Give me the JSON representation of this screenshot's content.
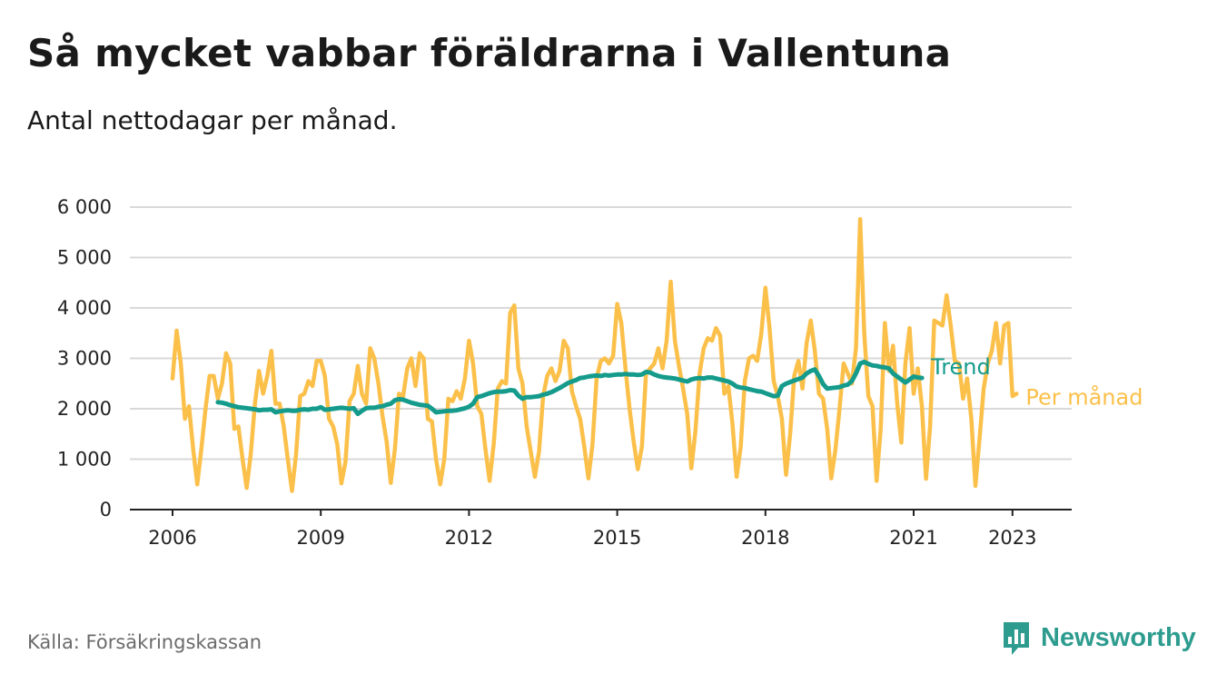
{
  "title": "Så mycket vabbar föräldrarna i Vallentuna",
  "subtitle": "Antal nettodagar per månad.",
  "source": "Källa: Försäkringskassan",
  "brand": {
    "name": "Newsworthy",
    "icon": "newsworthy-logo-icon",
    "color": "#2d9c8f"
  },
  "chart_data": {
    "type": "line",
    "x_start": "2006-01",
    "x_ticks": [
      "2006",
      "2009",
      "2012",
      "2015",
      "2018",
      "2021",
      "2023"
    ],
    "y_ticks": [
      "0",
      "1 000",
      "2 000",
      "3 000",
      "4 000",
      "5 000",
      "6 000"
    ],
    "ylim": [
      0,
      6000
    ],
    "grid": true,
    "legend_position": "right-end",
    "series": [
      {
        "name": "Per månad",
        "color": "#fbc04a",
        "start": "2006-01",
        "values": [
          2600,
          3550,
          2900,
          1800,
          2050,
          1200,
          500,
          1200,
          2000,
          2650,
          2650,
          2200,
          2500,
          3100,
          2900,
          1600,
          1650,
          1000,
          430,
          1100,
          2100,
          2750,
          2300,
          2650,
          3150,
          2100,
          2100,
          1650,
          1000,
          370,
          1100,
          2250,
          2300,
          2550,
          2450,
          2950,
          2950,
          2650,
          1800,
          1650,
          1300,
          520,
          950,
          2150,
          2300,
          2850,
          2300,
          2100,
          3200,
          3000,
          2500,
          1850,
          1350,
          530,
          1200,
          2300,
          2250,
          2800,
          3000,
          2450,
          3100,
          3000,
          1800,
          1750,
          1000,
          500,
          1000,
          2200,
          2150,
          2350,
          2200,
          2600,
          3350,
          2900,
          2050,
          1900,
          1200,
          570,
          1300,
          2400,
          2550,
          2500,
          3900,
          4050,
          2800,
          2500,
          1650,
          1150,
          650,
          1150,
          2250,
          2650,
          2800,
          2550,
          2750,
          3350,
          3200,
          2350,
          2050,
          1800,
          1250,
          620,
          1300,
          2600,
          2950,
          3000,
          2900,
          3050,
          4080,
          3700,
          2800,
          2000,
          1350,
          800,
          1250,
          2700,
          2800,
          2900,
          3200,
          2800,
          3350,
          4520,
          3350,
          2850,
          2400,
          1900,
          820,
          1550,
          2700,
          3200,
          3400,
          3350,
          3600,
          3450,
          2300,
          2450,
          1700,
          650,
          1250,
          2550,
          3000,
          3050,
          2950,
          3500,
          4400,
          3600,
          2550,
          2250,
          1800,
          690,
          1500,
          2650,
          2950,
          2400,
          3300,
          3750,
          3150,
          2300,
          2200,
          1600,
          620,
          1200,
          2000,
          2900,
          2700,
          2500,
          3200,
          5760,
          3500,
          2250,
          2050,
          570,
          1600,
          3700,
          2750,
          3250,
          2100,
          1330,
          2900,
          3600,
          2300,
          2800,
          2050,
          610,
          1650,
          3750,
          3700,
          3650,
          4250,
          3650,
          2950,
          2900,
          2200,
          2600,
          1800,
          470,
          1400,
          2400,
          2900,
          3150,
          3700,
          2900,
          3650,
          3700,
          2250,
          2300
        ]
      },
      {
        "name": "Trend",
        "color": "#159b8c",
        "start": "2006-12",
        "values": [
          2130,
          2120,
          2100,
          2070,
          2050,
          2030,
          2020,
          2010,
          2000,
          1990,
          1970,
          1980,
          1980,
          1990,
          1930,
          1950,
          1960,
          1970,
          1960,
          1960,
          1980,
          1990,
          1980,
          2000,
          2000,
          2030,
          1980,
          1990,
          2000,
          2010,
          2020,
          2010,
          2000,
          2010,
          1900,
          1960,
          2010,
          2020,
          2020,
          2040,
          2050,
          2080,
          2100,
          2170,
          2190,
          2180,
          2150,
          2120,
          2100,
          2080,
          2070,
          2060,
          2000,
          1930,
          1940,
          1950,
          1960,
          1960,
          1970,
          1990,
          2010,
          2040,
          2100,
          2230,
          2250,
          2280,
          2310,
          2330,
          2340,
          2340,
          2350,
          2370,
          2360,
          2260,
          2200,
          2230,
          2230,
          2240,
          2250,
          2280,
          2300,
          2330,
          2370,
          2410,
          2460,
          2510,
          2540,
          2570,
          2610,
          2620,
          2640,
          2650,
          2660,
          2650,
          2670,
          2660,
          2670,
          2680,
          2680,
          2690,
          2680,
          2680,
          2670,
          2680,
          2730,
          2720,
          2680,
          2650,
          2630,
          2620,
          2610,
          2600,
          2580,
          2560,
          2540,
          2580,
          2600,
          2610,
          2600,
          2620,
          2620,
          2600,
          2580,
          2560,
          2540,
          2500,
          2440,
          2420,
          2410,
          2390,
          2370,
          2350,
          2340,
          2310,
          2280,
          2250,
          2260,
          2450,
          2500,
          2530,
          2560,
          2590,
          2620,
          2700,
          2750,
          2780,
          2650,
          2490,
          2400,
          2410,
          2420,
          2430,
          2460,
          2480,
          2550,
          2700,
          2900,
          2930,
          2890,
          2860,
          2850,
          2830,
          2820,
          2800,
          2700,
          2640,
          2580,
          2520,
          2580,
          2640,
          2620,
          2610
        ]
      }
    ]
  }
}
